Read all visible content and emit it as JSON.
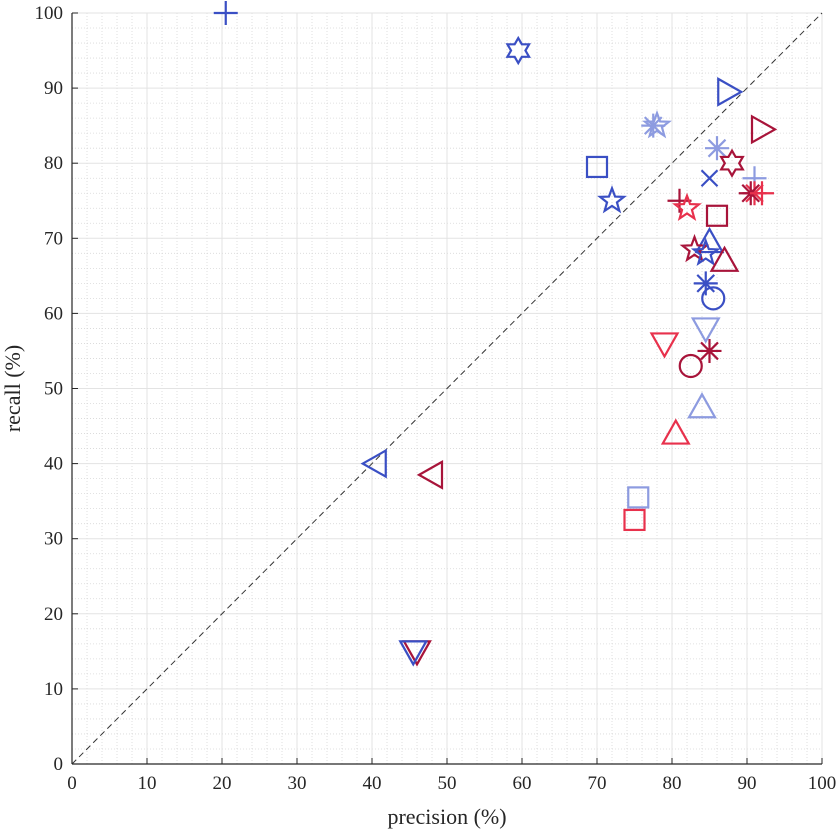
{
  "chart_data": {
    "type": "scatter",
    "xlabel": "precision (%)",
    "ylabel": "recall (%)",
    "xlim": [
      0,
      100
    ],
    "ylim": [
      0,
      100
    ],
    "xticks": [
      0,
      10,
      20,
      30,
      40,
      50,
      60,
      70,
      80,
      90,
      100
    ],
    "yticks": [
      0,
      10,
      20,
      30,
      40,
      50,
      60,
      70,
      80,
      90,
      100
    ],
    "grid": "minor-dotted",
    "reference_line": {
      "style": "dashed",
      "from": [
        0,
        0
      ],
      "to": [
        100,
        100
      ]
    },
    "colors": {
      "dark_blue": "#3a4fc4",
      "light_blue": "#8d9be0",
      "dark_red": "#a8143a",
      "light_red": "#e8314c",
      "axis": "#262626",
      "grid": "#d8d8d8",
      "reference": "#333333"
    },
    "points": [
      {
        "x": 20.5,
        "y": 100,
        "marker": "plus",
        "color": "dark_blue"
      },
      {
        "x": 59.5,
        "y": 95,
        "marker": "hexagram",
        "color": "dark_blue"
      },
      {
        "x": 87.5,
        "y": 89.5,
        "marker": "triangle-right",
        "color": "dark_blue"
      },
      {
        "x": 77.5,
        "y": 85,
        "marker": "asterisk",
        "color": "light_blue"
      },
      {
        "x": 78.0,
        "y": 85,
        "marker": "pentagram",
        "color": "light_blue"
      },
      {
        "x": 92.0,
        "y": 84.5,
        "marker": "triangle-right",
        "color": "dark_red"
      },
      {
        "x": 86.0,
        "y": 82,
        "marker": "asterisk",
        "color": "light_blue"
      },
      {
        "x": 88.0,
        "y": 80,
        "marker": "hexagram",
        "color": "dark_red"
      },
      {
        "x": 70.0,
        "y": 79.5,
        "marker": "square",
        "color": "dark_blue"
      },
      {
        "x": 85.0,
        "y": 78,
        "marker": "x",
        "color": "dark_blue"
      },
      {
        "x": 91.0,
        "y": 78,
        "marker": "plus",
        "color": "light_blue"
      },
      {
        "x": 91.0,
        "y": 76,
        "marker": "asterisk",
        "color": "light_red"
      },
      {
        "x": 90.5,
        "y": 76,
        "marker": "asterisk",
        "color": "dark_red"
      },
      {
        "x": 92.0,
        "y": 76,
        "marker": "plus",
        "color": "light_red"
      },
      {
        "x": 81.0,
        "y": 75,
        "marker": "plus",
        "color": "dark_red"
      },
      {
        "x": 72.0,
        "y": 75,
        "marker": "pentagram",
        "color": "dark_blue"
      },
      {
        "x": 82.0,
        "y": 74,
        "marker": "pentagram",
        "color": "light_red"
      },
      {
        "x": 86.0,
        "y": 73,
        "marker": "square",
        "color": "dark_red"
      },
      {
        "x": 85.0,
        "y": 69.5,
        "marker": "triangle-up",
        "color": "dark_blue"
      },
      {
        "x": 83.0,
        "y": 68.5,
        "marker": "pentagram",
        "color": "dark_red"
      },
      {
        "x": 84.5,
        "y": 68,
        "marker": "pentagram",
        "color": "dark_blue"
      },
      {
        "x": 87.0,
        "y": 67,
        "marker": "triangle-up",
        "color": "dark_red"
      },
      {
        "x": 84.5,
        "y": 64,
        "marker": "asterisk",
        "color": "dark_blue"
      },
      {
        "x": 85.5,
        "y": 62,
        "marker": "circle",
        "color": "dark_blue"
      },
      {
        "x": 84.5,
        "y": 58,
        "marker": "triangle-down",
        "color": "light_blue"
      },
      {
        "x": 79.0,
        "y": 56,
        "marker": "triangle-down",
        "color": "light_red"
      },
      {
        "x": 85.0,
        "y": 55,
        "marker": "asterisk",
        "color": "dark_red"
      },
      {
        "x": 82.5,
        "y": 53,
        "marker": "circle",
        "color": "dark_red"
      },
      {
        "x": 84.0,
        "y": 47.5,
        "marker": "triangle-up",
        "color": "light_blue"
      },
      {
        "x": 80.5,
        "y": 44,
        "marker": "triangle-up",
        "color": "light_red"
      },
      {
        "x": 40.5,
        "y": 40,
        "marker": "triangle-left",
        "color": "dark_blue"
      },
      {
        "x": 48.0,
        "y": 38.5,
        "marker": "triangle-left",
        "color": "dark_red"
      },
      {
        "x": 75.5,
        "y": 35.5,
        "marker": "square",
        "color": "light_blue"
      },
      {
        "x": 75.0,
        "y": 32.5,
        "marker": "square",
        "color": "light_red"
      },
      {
        "x": 46.0,
        "y": 15,
        "marker": "triangle-down",
        "color": "dark_red"
      },
      {
        "x": 45.5,
        "y": 15,
        "marker": "triangle-down",
        "color": "dark_blue"
      }
    ]
  }
}
